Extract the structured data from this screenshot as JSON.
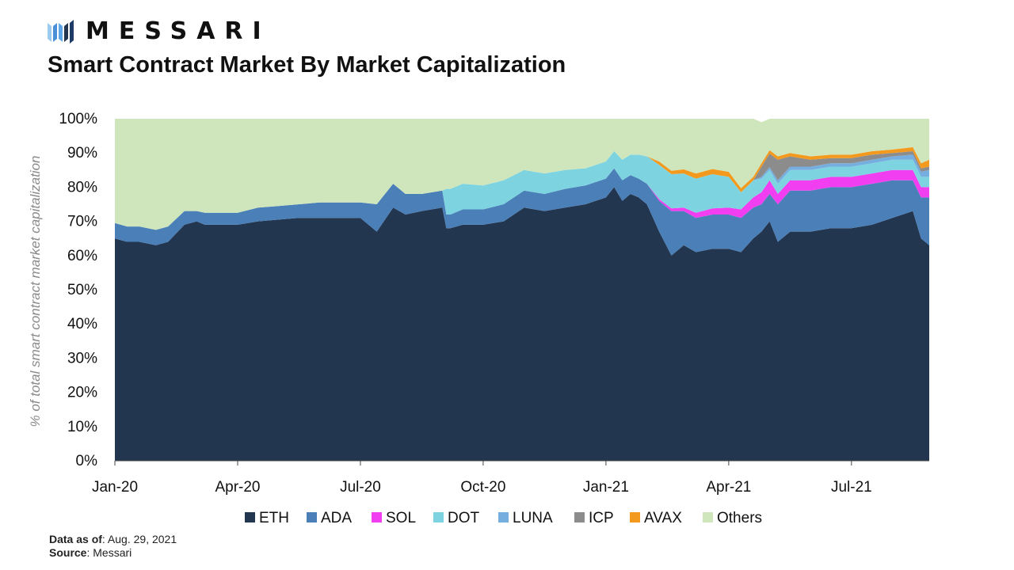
{
  "brand": {
    "name": "MESSARI",
    "logo_icon": "messari-logo-icon"
  },
  "title": "Smart Contract Market By Market Capitalization",
  "footer": {
    "data_label": "Data as of",
    "data_value": ": Aug. 29, 2021",
    "source_label": "Source",
    "source_value": ": Messari"
  },
  "chart_data": {
    "type": "area",
    "stacked": true,
    "ylabel": "% of total smart contract market capitalization",
    "ylim": [
      0,
      100
    ],
    "y_ticks": [
      "0%",
      "10%",
      "20%",
      "30%",
      "40%",
      "50%",
      "60%",
      "70%",
      "80%",
      "90%",
      "100%"
    ],
    "x_ticks": [
      "Jan-20",
      "Apr-20",
      "Jul-20",
      "Oct-20",
      "Jan-21",
      "Apr-21",
      "Jul-21"
    ],
    "x_tick_months": [
      0,
      3,
      6,
      9,
      12,
      15,
      18
    ],
    "x_range_months": [
      0,
      19.9
    ],
    "grid": false,
    "legend_position": "bottom",
    "x_months": [
      0,
      0.3,
      0.6,
      1.0,
      1.3,
      1.7,
      2.0,
      2.2,
      2.5,
      3.0,
      3.5,
      4.0,
      4.5,
      5.0,
      5.5,
      6.0,
      6.4,
      6.8,
      7.1,
      7.5,
      8.0,
      8.1,
      8.2,
      8.5,
      9.0,
      9.5,
      10.0,
      10.5,
      11.0,
      11.5,
      12.0,
      12.2,
      12.4,
      12.6,
      12.8,
      13.0,
      13.3,
      13.6,
      13.9,
      14.2,
      14.6,
      15.0,
      15.3,
      15.6,
      15.8,
      16.0,
      16.2,
      16.5,
      17.0,
      17.5,
      18.0,
      18.5,
      19.0,
      19.5,
      19.7,
      19.9
    ],
    "series": [
      {
        "name": "ETH",
        "color": "#233650",
        "values": [
          65,
          64,
          64,
          63,
          64,
          69,
          70,
          69,
          69,
          69,
          70,
          70.5,
          71,
          71,
          71,
          71,
          67,
          74,
          72,
          73,
          74,
          68,
          68,
          69,
          69,
          70,
          74,
          73,
          74,
          75,
          77,
          80,
          76,
          78,
          77,
          75,
          67,
          60,
          63,
          61,
          62,
          62,
          61,
          65,
          67,
          70,
          64,
          67,
          67,
          68,
          68,
          69,
          71,
          73,
          65,
          63
        ]
      },
      {
        "name": "ADA",
        "color": "#4a7fb8",
        "values": [
          4.5,
          4.5,
          4.5,
          4.5,
          4.5,
          4,
          3,
          3.5,
          3.5,
          3.5,
          4,
          4,
          4,
          4.5,
          4.5,
          4.5,
          8,
          7,
          6,
          5,
          5,
          4,
          4,
          4.5,
          4.5,
          5,
          5,
          5,
          5.5,
          5.5,
          5.5,
          5.5,
          6,
          5.5,
          5.5,
          6,
          9,
          13,
          10,
          10,
          10,
          10,
          10,
          9,
          8,
          8,
          11,
          12,
          12,
          12,
          12,
          12,
          11,
          9,
          12,
          14
        ]
      },
      {
        "name": "SOL",
        "color": "#f03ef0",
        "values": [
          0,
          0,
          0,
          0,
          0,
          0,
          0,
          0,
          0,
          0,
          0,
          0,
          0,
          0,
          0,
          0,
          0,
          0,
          0,
          0,
          0,
          0,
          0,
          0,
          0,
          0,
          0,
          0,
          0,
          0,
          0,
          0,
          0,
          0,
          0,
          0,
          0.5,
          0.8,
          1,
          1.5,
          1.8,
          2,
          2.5,
          3,
          3.5,
          4,
          3,
          3,
          3,
          3,
          3,
          3,
          3,
          3,
          3,
          3
        ]
      },
      {
        "name": "DOT",
        "color": "#7dd4e0",
        "values": [
          0,
          0,
          0,
          0,
          0,
          0,
          0,
          0,
          0,
          0,
          0,
          0,
          0,
          0,
          0,
          0,
          0,
          0,
          0,
          0,
          0,
          7.5,
          7.5,
          7.5,
          7,
          7,
          6,
          6,
          5.5,
          5,
          5,
          5,
          6,
          6,
          7,
          8,
          10,
          10,
          10,
          10,
          10,
          9,
          5,
          5,
          4,
          3,
          3,
          3,
          3,
          3,
          3,
          3,
          3,
          3,
          3,
          3
        ]
      },
      {
        "name": "LUNA",
        "color": "#77aee0",
        "values": [
          0,
          0,
          0,
          0,
          0,
          0,
          0,
          0,
          0,
          0,
          0,
          0,
          0,
          0,
          0,
          0,
          0,
          0,
          0,
          0,
          0,
          0,
          0,
          0,
          0,
          0,
          0,
          0,
          0,
          0,
          0,
          0,
          0,
          0,
          0,
          0,
          0,
          0,
          0,
          0,
          0,
          0,
          0,
          0,
          0.5,
          0.8,
          1,
          1,
          1,
          1,
          1,
          1,
          1,
          1.5,
          1.5,
          2
        ]
      },
      {
        "name": "ICP",
        "color": "#8c8c8c",
        "values": [
          0,
          0,
          0,
          0,
          0,
          0,
          0,
          0,
          0,
          0,
          0,
          0,
          0,
          0,
          0,
          0,
          0,
          0,
          0,
          0,
          0,
          0,
          0,
          0,
          0,
          0,
          0,
          0,
          0,
          0,
          0,
          0,
          0,
          0,
          0,
          0,
          0,
          0,
          0,
          0,
          0,
          0,
          0,
          0,
          3,
          4,
          6,
          3,
          2,
          1.5,
          1.5,
          1.5,
          1,
          1,
          1,
          1
        ]
      },
      {
        "name": "AVAX",
        "color": "#f39a1e",
        "values": [
          0,
          0,
          0,
          0,
          0,
          0,
          0,
          0,
          0,
          0,
          0,
          0,
          0,
          0,
          0,
          0,
          0,
          0,
          0,
          0,
          0,
          0,
          0,
          0,
          0,
          0,
          0,
          0,
          0,
          0,
          0,
          0,
          0,
          0,
          0,
          0,
          1,
          1,
          1.2,
          1.5,
          1.5,
          1.5,
          1.2,
          1,
          1,
          1,
          1,
          1,
          1,
          1,
          1,
          1,
          1,
          1.2,
          1.5,
          2
        ]
      },
      {
        "name": "Others",
        "color": "#cfe6bd",
        "values": [
          30.5,
          31.5,
          31.5,
          32.5,
          31.5,
          27,
          27,
          27.5,
          27.5,
          27.5,
          26,
          25.5,
          25,
          24.5,
          24.5,
          24.5,
          25,
          19,
          22,
          22,
          21,
          20.5,
          20.5,
          19,
          19.5,
          18,
          15,
          16,
          15,
          14.5,
          12.5,
          9.5,
          12,
          10.5,
          10.5,
          11,
          12.5,
          15.2,
          14.8,
          16,
          14.7,
          15.5,
          20.3,
          17,
          12,
          9.2,
          11,
          10,
          11,
          10.5,
          10.5,
          9.5,
          9,
          8.3,
          13,
          12
        ]
      }
    ]
  }
}
